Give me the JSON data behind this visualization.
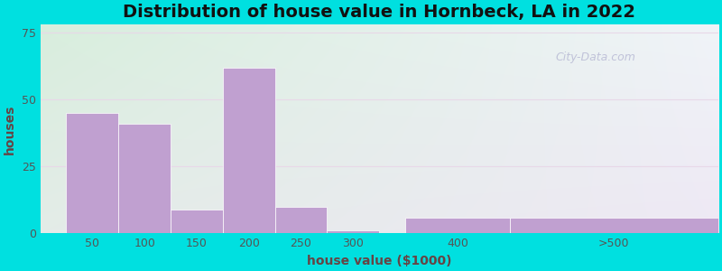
{
  "title": "Distribution of house value in Hornbeck, LA in 2022",
  "xlabel": "house value ($1000)",
  "ylabel": "houses",
  "bar_labels": [
    "50",
    "100",
    "150",
    "200",
    "250",
    "300",
    "400",
    ">500"
  ],
  "bar_centers": [
    50,
    100,
    150,
    200,
    250,
    300,
    400,
    550
  ],
  "bar_widths": [
    50,
    50,
    50,
    50,
    50,
    50,
    100,
    200
  ],
  "bar_values": [
    45,
    41,
    9,
    62,
    10,
    1,
    6,
    6
  ],
  "bar_color": "#c0a0d0",
  "yticks": [
    0,
    25,
    50,
    75
  ],
  "ylim": [
    0,
    78
  ],
  "xlim": [
    0,
    650
  ],
  "xtick_positions": [
    50,
    100,
    150,
    200,
    250,
    300,
    400,
    550
  ],
  "xtick_labels": [
    "50",
    "100",
    "150",
    "200",
    "250",
    "300",
    "400",
    ">500"
  ],
  "background_outer": "#00e0e0",
  "bg_top_left": "#d8eedd",
  "bg_bottom_right": "#e8e4f0",
  "grid_color": "#e8d8e8",
  "title_fontsize": 14,
  "axis_label_fontsize": 10,
  "tick_fontsize": 9,
  "watermark_text": "City-Data.com",
  "title_color": "#111111",
  "tick_color": "#555555",
  "label_color": "#664444"
}
